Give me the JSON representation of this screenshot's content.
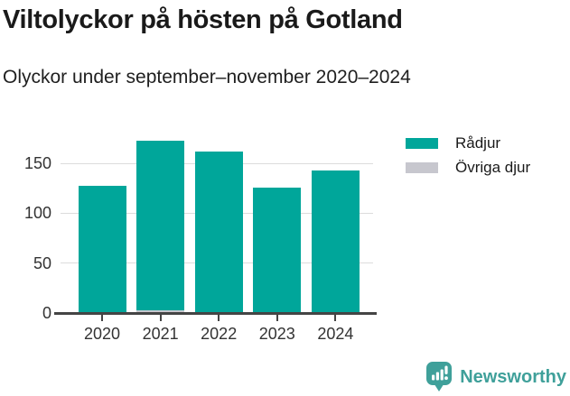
{
  "header": {
    "title": "Viltolyckor på hösten på Gotland",
    "subtitle": "Olyckor under september–november 2020–2024"
  },
  "chart_data": {
    "type": "bar",
    "stacked": true,
    "title": "Viltolyckor på hösten på Gotland",
    "subtitle": "Olyckor under september–november 2020–2024",
    "categories": [
      "2020",
      "2021",
      "2022",
      "2023",
      "2024"
    ],
    "series": [
      {
        "name": "Rådjur",
        "color": "#00A69A",
        "values": [
          126,
          170,
          161,
          125,
          142
        ]
      },
      {
        "name": "Övriga djur",
        "color": "#C7C7CE",
        "values": [
          1,
          3,
          1,
          1,
          1
        ]
      }
    ],
    "totals": [
      127,
      173,
      162,
      126,
      143
    ],
    "stack_order_bottom_to_top": [
      "Övriga djur",
      "Rådjur"
    ],
    "xlabel": "",
    "ylabel": "",
    "yticks": [
      0,
      50,
      100,
      150
    ],
    "ylim": [
      0,
      187
    ],
    "grid": true,
    "legend_position": "right"
  },
  "legend": {
    "items": [
      {
        "label": "Rådjur",
        "color": "#00A69A"
      },
      {
        "label": "Övriga djur",
        "color": "#C7C7CE"
      }
    ]
  },
  "footer": {
    "brand": "Newsworthy",
    "brand_color": "#3FA09A",
    "logo_icon": "bar-chart-speech-bubble-icon"
  }
}
